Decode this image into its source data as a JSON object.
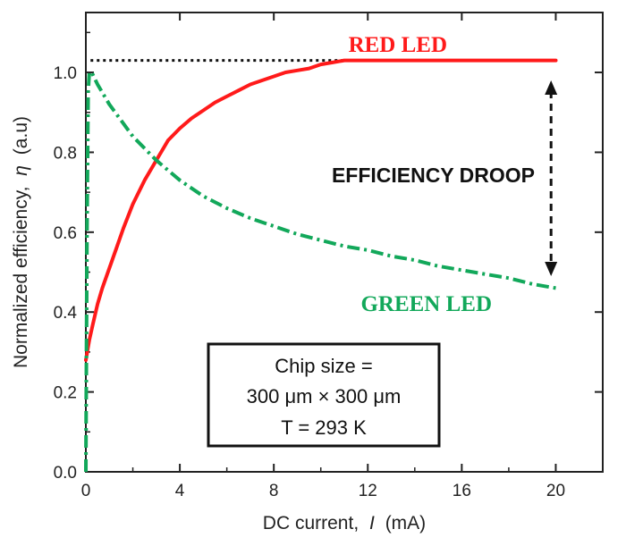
{
  "chart_data": {
    "type": "line",
    "title": "",
    "xlabel": "DC current,",
    "xlabel_var": "I",
    "xlabel_unit": "(mA)",
    "ylabel": "Normalized efficiency,",
    "ylabel_var": "η",
    "ylabel_unit": "(a.u)",
    "xlim": [
      0,
      22
    ],
    "ylim": [
      0,
      1.15
    ],
    "xticks": [
      0,
      4,
      8,
      12,
      16,
      20
    ],
    "xtick_labels": [
      "0",
      "4",
      "8",
      "12",
      "16",
      "20"
    ],
    "yticks": [
      0.0,
      0.2,
      0.4,
      0.6,
      0.8,
      1.0
    ],
    "ytick_labels": [
      "0.0",
      "0.2",
      "0.4",
      "0.6",
      "0.8",
      "1.0"
    ],
    "grid": false,
    "series": [
      {
        "name": "RED LED",
        "color": "#ff1a1a",
        "style": "solid",
        "x": [
          0.0,
          0.15,
          0.3,
          0.5,
          0.7,
          1.0,
          1.3,
          1.6,
          2.0,
          2.5,
          3.0,
          3.5,
          4.0,
          4.5,
          5.0,
          5.5,
          6.0,
          6.5,
          7.0,
          7.5,
          8.0,
          8.5,
          9.0,
          9.5,
          10.0,
          10.5,
          11.0,
          12.0,
          14.0,
          16.0,
          18.0,
          20.0
        ],
        "y": [
          0.28,
          0.33,
          0.37,
          0.42,
          0.46,
          0.51,
          0.56,
          0.61,
          0.67,
          0.73,
          0.78,
          0.83,
          0.86,
          0.885,
          0.905,
          0.925,
          0.94,
          0.955,
          0.97,
          0.98,
          0.99,
          1.0,
          1.005,
          1.01,
          1.02,
          1.025,
          1.03,
          1.03,
          1.03,
          1.03,
          1.03,
          1.03
        ]
      },
      {
        "name": "GREEN LED",
        "color": "#12a85a",
        "style": "dashdot",
        "x": [
          0.0,
          0.05,
          0.1,
          0.15,
          0.25,
          0.5,
          1.0,
          1.5,
          2.0,
          3.0,
          4.0,
          5.0,
          6.0,
          7.0,
          8.0,
          9.0,
          10.0,
          11.0,
          12.0,
          13.0,
          14.0,
          15.0,
          16.0,
          17.0,
          18.0,
          19.0,
          20.0
        ],
        "y": [
          0.0,
          0.6,
          0.95,
          1.0,
          1.0,
          0.97,
          0.92,
          0.88,
          0.84,
          0.78,
          0.73,
          0.69,
          0.66,
          0.635,
          0.615,
          0.595,
          0.58,
          0.565,
          0.555,
          0.54,
          0.53,
          0.515,
          0.505,
          0.495,
          0.485,
          0.47,
          0.46
        ]
      }
    ],
    "annotations": {
      "reference_level": 1.03,
      "reference_x_range": [
        0.2,
        20
      ],
      "droop_arrow_x": 19.8,
      "droop_arrow_y_range": [
        0.49,
        0.98
      ],
      "droop_text": "EFFICIENCY DROOP"
    },
    "info_box": {
      "line1": "Chip size =",
      "line2": "300 μm × 300 μm",
      "line3": "T = 293 K"
    }
  }
}
